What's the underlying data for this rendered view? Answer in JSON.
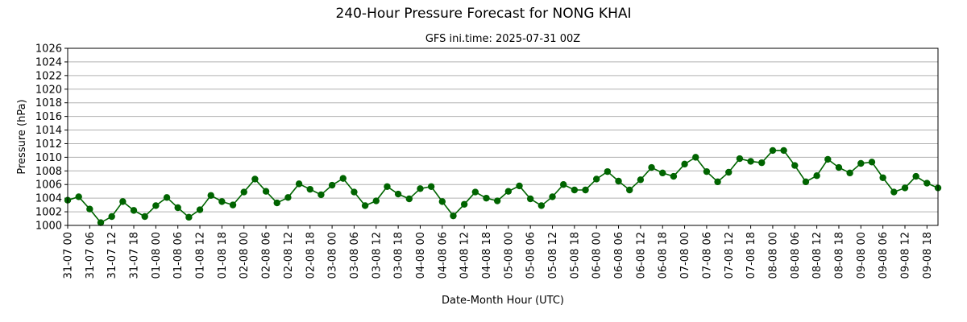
{
  "chart_data": {
    "type": "line",
    "title": "240-Hour Pressure Forecast for NONG KHAI",
    "subtitle": "GFS ini.time: 2025-07-31 00Z",
    "xlabel": "Date-Month Hour (UTC)",
    "ylabel": "Pressure (hPa)",
    "ylim": [
      1000,
      1026
    ],
    "yticks": [
      1000,
      1002,
      1004,
      1006,
      1008,
      1010,
      1012,
      1014,
      1016,
      1018,
      1020,
      1022,
      1024,
      1026
    ],
    "xticks": [
      "31-07 00",
      "31-07 06",
      "31-07 12",
      "31-07 18",
      "01-08 00",
      "01-08 06",
      "01-08 12",
      "01-08 18",
      "02-08 00",
      "02-08 06",
      "02-08 12",
      "02-08 18",
      "03-08 00",
      "03-08 06",
      "03-08 12",
      "03-08 18",
      "04-08 00",
      "04-08 06",
      "04-08 12",
      "04-08 18",
      "05-08 00",
      "05-08 06",
      "05-08 12",
      "05-08 18",
      "06-08 00",
      "06-08 06",
      "06-08 12",
      "06-08 18",
      "07-08 00",
      "07-08 06",
      "07-08 12",
      "07-08 18",
      "08-08 00",
      "08-08 06",
      "08-08 12",
      "08-08 18",
      "09-08 00",
      "09-08 06",
      "09-08 12",
      "09-08 18"
    ],
    "grid": "horizontal",
    "color": "#006400",
    "x_step_hours": 3,
    "values": [
      1003.7,
      1004.2,
      1002.4,
      1000.4,
      1001.3,
      1003.5,
      1002.2,
      1001.3,
      1002.9,
      1004.1,
      1002.6,
      1001.2,
      1002.3,
      1004.4,
      1003.5,
      1003.0,
      1004.9,
      1006.8,
      1005.0,
      1003.3,
      1004.1,
      1006.1,
      1005.3,
      1004.5,
      1005.9,
      1006.9,
      1004.9,
      1002.9,
      1003.6,
      1005.7,
      1004.6,
      1003.9,
      1005.4,
      1005.7,
      1003.5,
      1001.4,
      1003.1,
      1004.9,
      1004.0,
      1003.6,
      1005.0,
      1005.8,
      1003.9,
      1002.9,
      1004.2,
      1006.0,
      1005.2,
      1005.2,
      1006.8,
      1007.9,
      1006.5,
      1005.2,
      1006.7,
      1008.5,
      1007.7,
      1007.2,
      1009.0,
      1010.0,
      1007.9,
      1006.4,
      1007.8,
      1009.8,
      1009.4,
      1009.2,
      1011.0,
      1011.0,
      1008.8,
      1006.4,
      1007.3,
      1009.7,
      1008.5,
      1007.7,
      1009.1,
      1009.3,
      1007.0,
      1004.9,
      1005.5,
      1007.2,
      1006.2,
      1005.5
    ]
  }
}
